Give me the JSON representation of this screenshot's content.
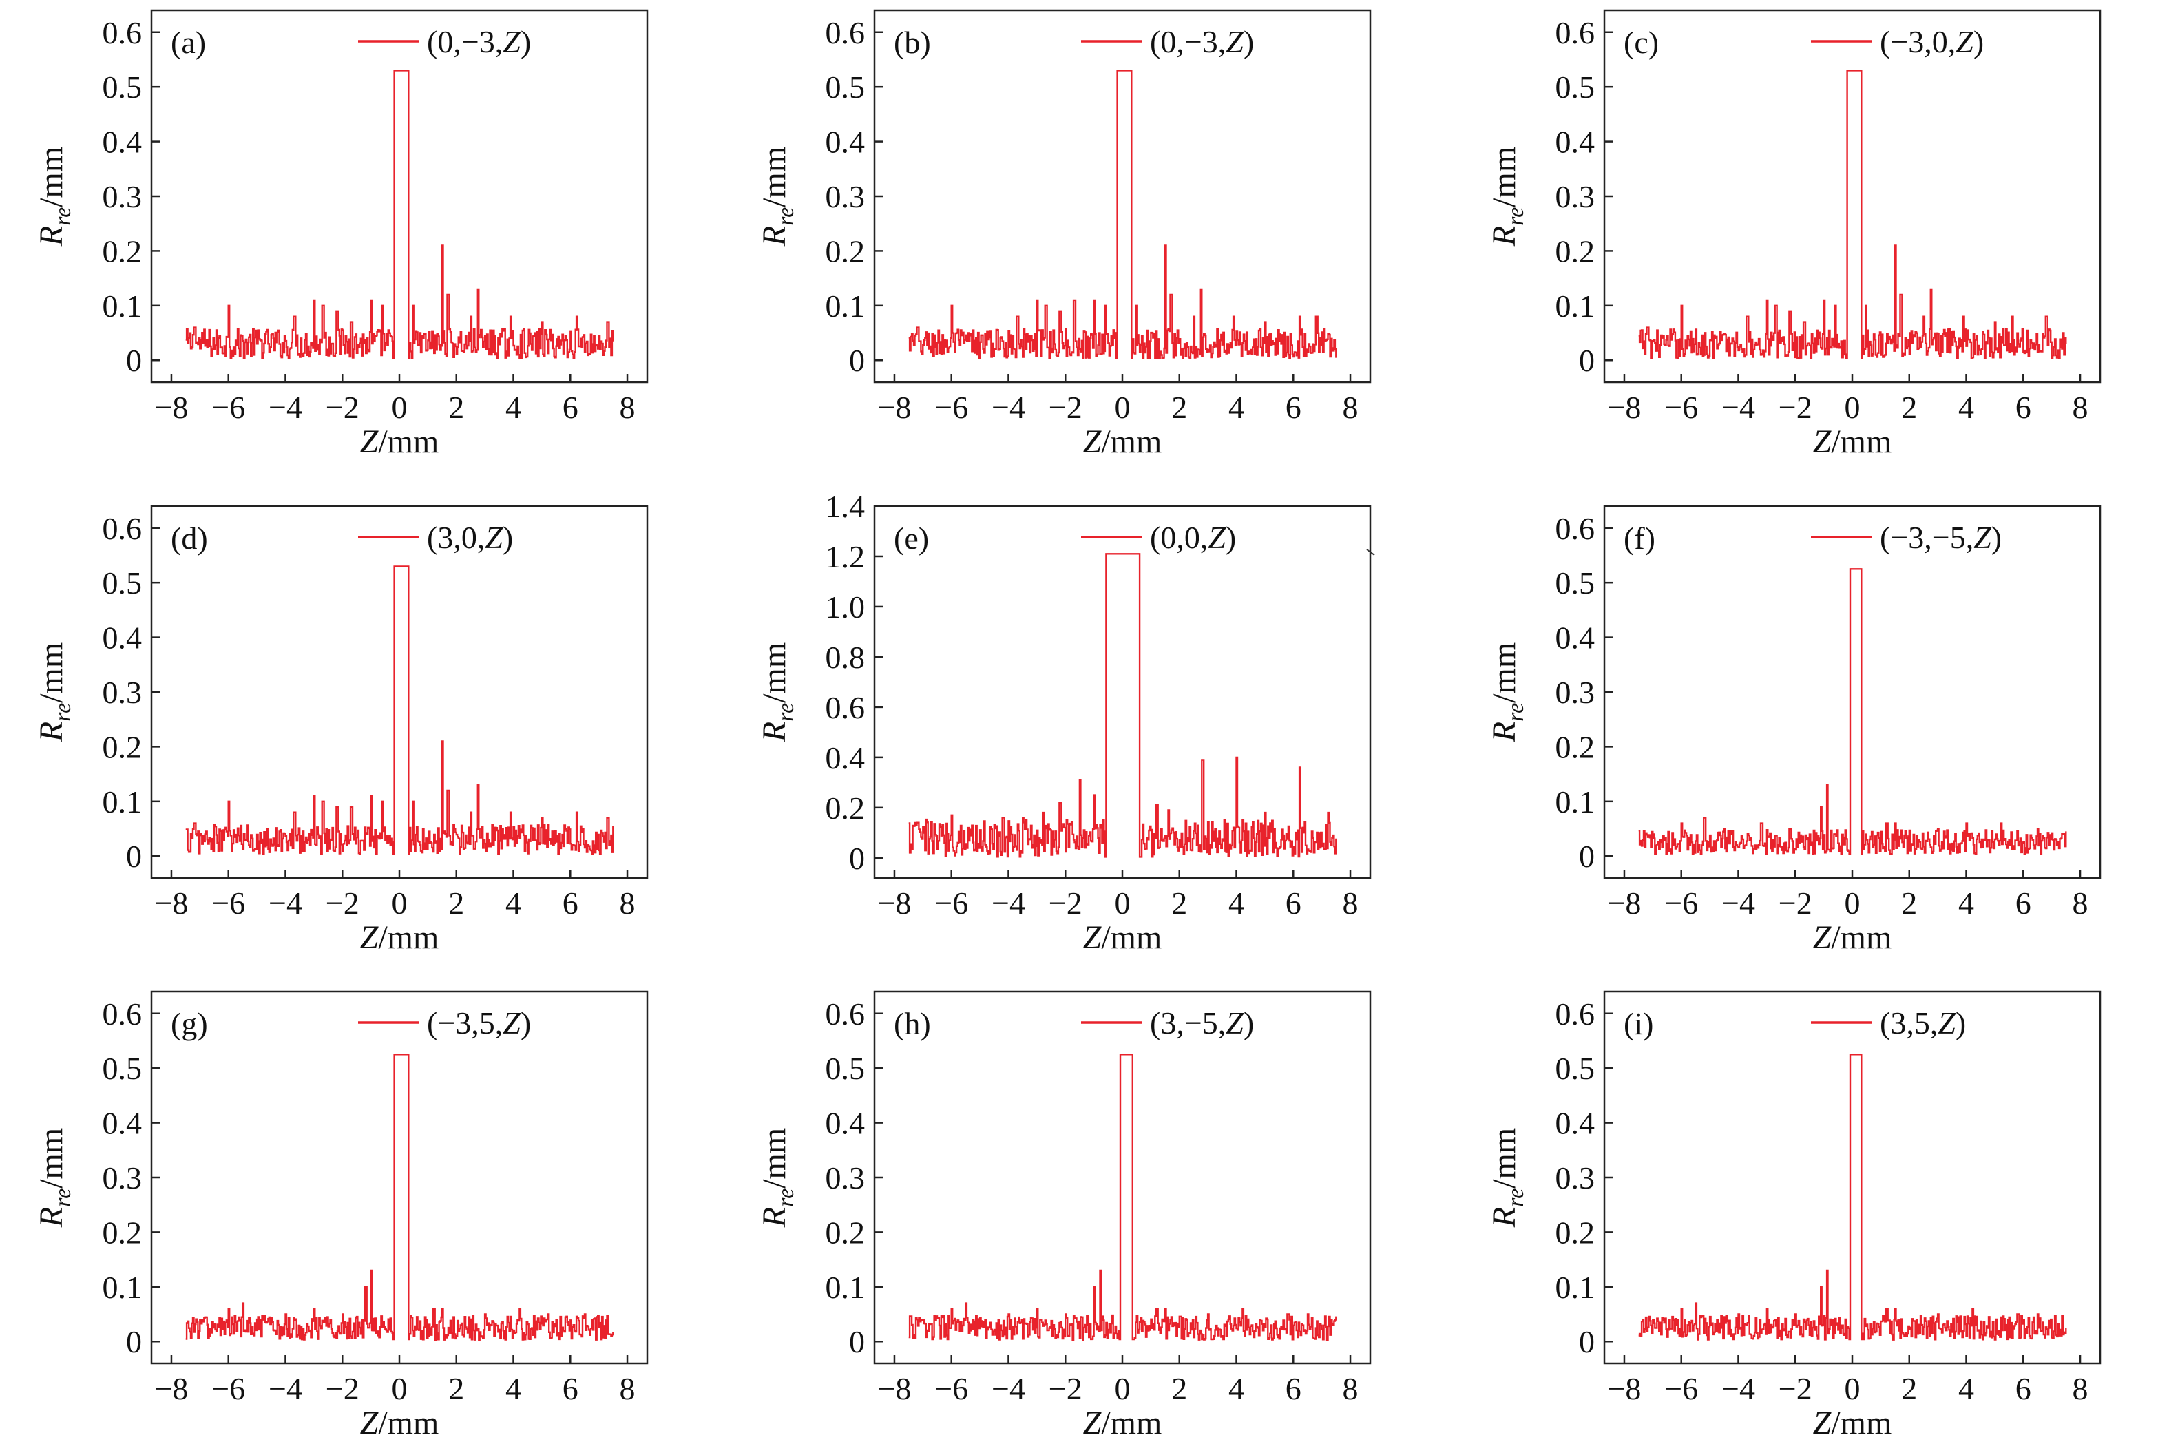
{
  "figure": {
    "x_axis_label": {
      "var": "Z",
      "unit": "/mm"
    },
    "y_axis_label": {
      "var": "R",
      "sub": "re",
      "unit": "/mm"
    }
  },
  "colors": {
    "series": "#e8222b",
    "axis": "#222222"
  },
  "chart_data": [
    {
      "type": "line",
      "panel_label": "(a)",
      "legend": {
        "pre": "(0,−3,",
        "var": "Z",
        "post": ")"
      },
      "xlim": [
        -8.7,
        8.7
      ],
      "ylim": [
        -0.04,
        0.64
      ],
      "x_ticks": [
        -8,
        -6,
        -4,
        -2,
        0,
        2,
        4,
        6,
        8
      ],
      "y_ticks": [
        0,
        0.1,
        0.2,
        0.3,
        0.4,
        0.5,
        0.6
      ],
      "y_tick_labels": [
        "0",
        "0.1",
        "0.2",
        "0.3",
        "0.4",
        "0.5",
        "0.6"
      ],
      "x_range": [
        -7.5,
        7.5
      ],
      "noise_max": 0.055,
      "peaks": [
        [
          -7.2,
          0.06
        ],
        [
          -6.0,
          0.1
        ],
        [
          -3.7,
          0.08
        ],
        [
          -3.0,
          0.11
        ],
        [
          -2.7,
          0.1
        ],
        [
          -2.2,
          0.09
        ],
        [
          -1.7,
          0.07
        ],
        [
          -1.0,
          0.11
        ],
        [
          -0.6,
          0.1
        ],
        [
          0.45,
          0.1
        ],
        [
          1.5,
          0.21
        ],
        [
          1.7,
          0.12
        ],
        [
          2.5,
          0.08
        ],
        [
          2.75,
          0.13
        ],
        [
          3.9,
          0.08
        ],
        [
          5.0,
          0.07
        ],
        [
          6.2,
          0.08
        ],
        [
          7.3,
          0.07
        ]
      ],
      "main_peak": {
        "x": [
          -0.2,
          0.3
        ],
        "y": 0.53
      }
    },
    {
      "type": "line",
      "panel_label": "(b)",
      "legend": {
        "pre": "(0,−3,",
        "var": "Z",
        "post": ")"
      },
      "xlim": [
        -8.7,
        8.7
      ],
      "ylim": [
        -0.04,
        0.64
      ],
      "x_ticks": [
        -8,
        -6,
        -4,
        -2,
        0,
        2,
        4,
        6,
        8
      ],
      "y_ticks": [
        0,
        0.1,
        0.2,
        0.3,
        0.4,
        0.5,
        0.6
      ],
      "y_tick_labels": [
        "0",
        "0.1",
        "0.2",
        "0.3",
        "0.4",
        "0.5",
        "0.6"
      ],
      "x_range": [
        -7.5,
        7.5
      ],
      "noise_max": 0.055,
      "peaks": [
        [
          -7.2,
          0.06
        ],
        [
          -6.0,
          0.1
        ],
        [
          -3.7,
          0.08
        ],
        [
          -3.0,
          0.11
        ],
        [
          -2.7,
          0.1
        ],
        [
          -2.2,
          0.09
        ],
        [
          -1.7,
          0.11
        ],
        [
          -1.0,
          0.11
        ],
        [
          -0.6,
          0.1
        ],
        [
          0.45,
          0.1
        ],
        [
          1.5,
          0.21
        ],
        [
          1.7,
          0.12
        ],
        [
          2.5,
          0.08
        ],
        [
          2.75,
          0.13
        ],
        [
          3.9,
          0.08
        ],
        [
          5.0,
          0.07
        ],
        [
          6.2,
          0.08
        ],
        [
          6.8,
          0.08
        ]
      ],
      "main_peak": {
        "x": [
          -0.2,
          0.3
        ],
        "y": 0.53
      }
    },
    {
      "type": "line",
      "panel_label": "(c)",
      "legend": {
        "pre": "(−3,0,",
        "var": "Z",
        "post": ")"
      },
      "xlim": [
        -8.7,
        8.7
      ],
      "ylim": [
        -0.04,
        0.64
      ],
      "x_ticks": [
        -8,
        -6,
        -4,
        -2,
        0,
        2,
        4,
        6,
        8
      ],
      "y_ticks": [
        0,
        0.1,
        0.2,
        0.3,
        0.4,
        0.5,
        0.6
      ],
      "y_tick_labels": [
        "0",
        "0.1",
        "0.2",
        "0.3",
        "0.4",
        "0.5",
        "0.6"
      ],
      "x_range": [
        -7.5,
        7.5
      ],
      "noise_max": 0.055,
      "peaks": [
        [
          -7.2,
          0.06
        ],
        [
          -6.0,
          0.1
        ],
        [
          -3.7,
          0.08
        ],
        [
          -3.0,
          0.11
        ],
        [
          -2.7,
          0.1
        ],
        [
          -2.2,
          0.09
        ],
        [
          -1.7,
          0.07
        ],
        [
          -1.0,
          0.11
        ],
        [
          -0.6,
          0.1
        ],
        [
          0.45,
          0.1
        ],
        [
          1.5,
          0.21
        ],
        [
          1.7,
          0.12
        ],
        [
          2.5,
          0.08
        ],
        [
          2.75,
          0.13
        ],
        [
          3.9,
          0.08
        ],
        [
          5.0,
          0.07
        ],
        [
          5.6,
          0.08
        ],
        [
          6.8,
          0.08
        ]
      ],
      "main_peak": {
        "x": [
          -0.2,
          0.3
        ],
        "y": 0.53
      }
    },
    {
      "type": "line",
      "panel_label": "(d)",
      "legend": {
        "pre": "(3,0,",
        "var": "Z",
        "post": ")"
      },
      "xlim": [
        -8.7,
        8.7
      ],
      "ylim": [
        -0.04,
        0.64
      ],
      "x_ticks": [
        -8,
        -6,
        -4,
        -2,
        0,
        2,
        4,
        6,
        8
      ],
      "y_ticks": [
        0,
        0.1,
        0.2,
        0.3,
        0.4,
        0.5,
        0.6
      ],
      "y_tick_labels": [
        "0",
        "0.1",
        "0.2",
        "0.3",
        "0.4",
        "0.5",
        "0.6"
      ],
      "x_range": [
        -7.5,
        7.5
      ],
      "noise_max": 0.055,
      "peaks": [
        [
          -7.2,
          0.06
        ],
        [
          -6.0,
          0.1
        ],
        [
          -3.7,
          0.08
        ],
        [
          -3.0,
          0.11
        ],
        [
          -2.7,
          0.1
        ],
        [
          -2.2,
          0.09
        ],
        [
          -1.7,
          0.09
        ],
        [
          -1.0,
          0.11
        ],
        [
          -0.6,
          0.1
        ],
        [
          0.45,
          0.1
        ],
        [
          1.5,
          0.21
        ],
        [
          1.7,
          0.12
        ],
        [
          2.5,
          0.08
        ],
        [
          2.75,
          0.13
        ],
        [
          3.9,
          0.08
        ],
        [
          5.0,
          0.07
        ],
        [
          6.2,
          0.08
        ],
        [
          7.3,
          0.07
        ]
      ],
      "main_peak": {
        "x": [
          -0.2,
          0.3
        ],
        "y": 0.53
      }
    },
    {
      "type": "line",
      "panel_label": "(e)",
      "legend": {
        "pre": "(0,0,",
        "var": "Z",
        "post": ")"
      },
      "xlim": [
        -8.7,
        8.7
      ],
      "ylim": [
        -0.08,
        1.4
      ],
      "x_ticks": [
        -8,
        -6,
        -4,
        -2,
        0,
        2,
        4,
        6,
        8
      ],
      "y_ticks": [
        0,
        0.2,
        0.4,
        0.6,
        0.8,
        1.0,
        1.2,
        1.4
      ],
      "y_tick_labels": [
        "0",
        "0.2",
        "0.4",
        "0.6",
        "0.8",
        "1.0",
        "1.2",
        "1.4"
      ],
      "x_range": [
        -7.5,
        7.5
      ],
      "noise_max": 0.15,
      "peaks": [
        [
          -7.2,
          0.14
        ],
        [
          -6.0,
          0.17
        ],
        [
          -4.2,
          0.16
        ],
        [
          -3.5,
          0.16
        ],
        [
          -2.8,
          0.18
        ],
        [
          -2.2,
          0.22
        ],
        [
          -1.5,
          0.31
        ],
        [
          -1.0,
          0.25
        ],
        [
          1.2,
          0.21
        ],
        [
          1.6,
          0.19
        ],
        [
          2.8,
          0.39
        ],
        [
          4.0,
          0.4
        ],
        [
          5.0,
          0.18
        ],
        [
          6.2,
          0.36
        ],
        [
          7.2,
          0.18
        ]
      ],
      "main_peak": {
        "x": [
          -0.6,
          0.6
        ],
        "y": 1.21
      }
    },
    {
      "type": "line",
      "panel_label": "(f)",
      "legend": {
        "pre": "(−3,−5,",
        "var": "Z",
        "post": ")"
      },
      "xlim": [
        -8.7,
        8.7
      ],
      "ylim": [
        -0.04,
        0.64
      ],
      "x_ticks": [
        -8,
        -6,
        -4,
        -2,
        0,
        2,
        4,
        6,
        8
      ],
      "y_ticks": [
        0,
        0.1,
        0.2,
        0.3,
        0.4,
        0.5,
        0.6
      ],
      "y_tick_labels": [
        "0",
        "0.1",
        "0.2",
        "0.3",
        "0.4",
        "0.5",
        "0.6"
      ],
      "x_range": [
        -7.5,
        7.5
      ],
      "noise_max": 0.045,
      "peaks": [
        [
          -7.0,
          0.04
        ],
        [
          -6.0,
          0.06
        ],
        [
          -5.2,
          0.07
        ],
        [
          -4.5,
          0.05
        ],
        [
          -3.2,
          0.06
        ],
        [
          -2.2,
          0.05
        ],
        [
          -1.1,
          0.09
        ],
        [
          -0.9,
          0.13
        ],
        [
          1.2,
          0.06
        ],
        [
          1.5,
          0.06
        ],
        [
          3.0,
          0.05
        ],
        [
          4.0,
          0.06
        ],
        [
          5.2,
          0.06
        ],
        [
          6.5,
          0.05
        ]
      ],
      "main_peak": {
        "x": [
          -0.1,
          0.3
        ],
        "y": 0.525
      }
    },
    {
      "type": "line",
      "panel_label": "(g)",
      "legend": {
        "pre": "(−3,5,",
        "var": "Z",
        "post": ")"
      },
      "xlim": [
        -8.7,
        8.7
      ],
      "ylim": [
        -0.04,
        0.64
      ],
      "x_ticks": [
        -8,
        -6,
        -4,
        -2,
        0,
        2,
        4,
        6,
        8
      ],
      "y_ticks": [
        0,
        0.1,
        0.2,
        0.3,
        0.4,
        0.5,
        0.6
      ],
      "y_tick_labels": [
        "0",
        "0.1",
        "0.2",
        "0.3",
        "0.4",
        "0.5",
        "0.6"
      ],
      "x_range": [
        -7.5,
        7.5
      ],
      "noise_max": 0.045,
      "peaks": [
        [
          -7.0,
          0.04
        ],
        [
          -6.0,
          0.06
        ],
        [
          -5.5,
          0.07
        ],
        [
          -4.0,
          0.05
        ],
        [
          -3.0,
          0.06
        ],
        [
          -2.0,
          0.05
        ],
        [
          -1.2,
          0.1
        ],
        [
          -1.0,
          0.13
        ],
        [
          1.2,
          0.06
        ],
        [
          1.5,
          0.06
        ],
        [
          3.0,
          0.05
        ],
        [
          4.2,
          0.06
        ],
        [
          5.2,
          0.05
        ],
        [
          6.5,
          0.05
        ]
      ],
      "main_peak": {
        "x": [
          -0.2,
          0.3
        ],
        "y": 0.525
      }
    },
    {
      "type": "line",
      "panel_label": "(h)",
      "legend": {
        "pre": "(3,−5,",
        "var": "Z",
        "post": ")"
      },
      "xlim": [
        -8.7,
        8.7
      ],
      "ylim": [
        -0.04,
        0.64
      ],
      "x_ticks": [
        -8,
        -6,
        -4,
        -2,
        0,
        2,
        4,
        6,
        8
      ],
      "y_ticks": [
        0,
        0.1,
        0.2,
        0.3,
        0.4,
        0.5,
        0.6
      ],
      "y_tick_labels": [
        "0",
        "0.1",
        "0.2",
        "0.3",
        "0.4",
        "0.5",
        "0.6"
      ],
      "x_range": [
        -7.5,
        7.5
      ],
      "noise_max": 0.045,
      "peaks": [
        [
          -7.0,
          0.04
        ],
        [
          -6.0,
          0.06
        ],
        [
          -5.5,
          0.07
        ],
        [
          -4.0,
          0.05
        ],
        [
          -3.0,
          0.06
        ],
        [
          -2.0,
          0.05
        ],
        [
          -1.0,
          0.1
        ],
        [
          -0.8,
          0.13
        ],
        [
          1.2,
          0.06
        ],
        [
          1.5,
          0.06
        ],
        [
          3.0,
          0.05
        ],
        [
          4.2,
          0.06
        ],
        [
          5.8,
          0.05
        ],
        [
          6.5,
          0.05
        ]
      ],
      "main_peak": {
        "x": [
          -0.1,
          0.35
        ],
        "y": 0.525
      }
    },
    {
      "type": "line",
      "panel_label": "(i)",
      "legend": {
        "pre": "(3,5,",
        "var": "Z",
        "post": ")"
      },
      "xlim": [
        -8.7,
        8.7
      ],
      "ylim": [
        -0.04,
        0.64
      ],
      "x_ticks": [
        -8,
        -6,
        -4,
        -2,
        0,
        2,
        4,
        6,
        8
      ],
      "y_ticks": [
        0,
        0.1,
        0.2,
        0.3,
        0.4,
        0.5,
        0.6
      ],
      "y_tick_labels": [
        "0",
        "0.1",
        "0.2",
        "0.3",
        "0.4",
        "0.5",
        "0.6"
      ],
      "x_range": [
        -7.5,
        7.5
      ],
      "noise_max": 0.045,
      "peaks": [
        [
          -7.0,
          0.04
        ],
        [
          -6.0,
          0.06
        ],
        [
          -5.5,
          0.07
        ],
        [
          -4.0,
          0.05
        ],
        [
          -3.0,
          0.06
        ],
        [
          -2.0,
          0.05
        ],
        [
          -1.1,
          0.1
        ],
        [
          -0.9,
          0.13
        ],
        [
          1.2,
          0.06
        ],
        [
          1.5,
          0.06
        ],
        [
          3.0,
          0.05
        ],
        [
          4.2,
          0.06
        ],
        [
          5.8,
          0.05
        ],
        [
          6.5,
          0.05
        ]
      ],
      "main_peak": {
        "x": [
          -0.1,
          0.3
        ],
        "y": 0.525
      }
    }
  ]
}
